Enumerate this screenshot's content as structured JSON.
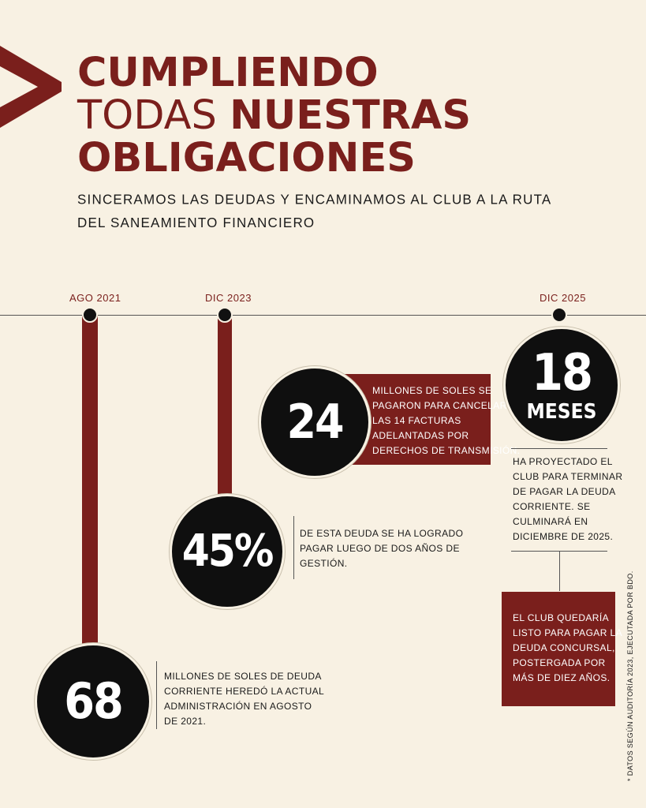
{
  "colors": {
    "accent": "#7a1f1c",
    "background": "#f8f1e3",
    "circle": "#0f0f0f"
  },
  "title": {
    "line1": "CUMPLIENDO",
    "line2_light": "TODAS ",
    "line2_bold": "NUESTRAS",
    "line3": "OBLIGACIONES"
  },
  "subtitle": {
    "line1": "SINCERAMOS LAS DEUDAS Y ENCAMINAMOS AL CLUB A LA RUTA",
    "line2": "DEL SANEAMIENTO FINANCIERO"
  },
  "timeline": {
    "dates": [
      "AGO 2021",
      "DIC 2023",
      "DIC 2025"
    ]
  },
  "stats": {
    "s68": {
      "value": "68",
      "lines": [
        "MILLONES DE SOLES DE DEUDA",
        "CORRIENTE HEREDÓ LA ACTUAL",
        "ADMINISTRACIÓN EN AGOSTO",
        "DE 2021."
      ]
    },
    "s45": {
      "value": "45%",
      "lines": [
        "DE ESTA DEUDA SE HA LOGRADO",
        "PAGAR LUEGO DE DOS AÑOS DE",
        "GESTIÓN."
      ]
    },
    "s24": {
      "value": "24",
      "lines": [
        "MILLONES DE SOLES SE",
        "PAGARON PARA CANCELAR",
        "LAS 14 FACTURAS",
        "ADELANTADAS POR",
        "DERECHOS DE TRANSMISIÓN."
      ]
    },
    "s18": {
      "value": "18",
      "unit": "MESES",
      "lines": [
        "HA PROYECTADO EL",
        "CLUB PARA TERMINAR",
        "DE PAGAR LA DEUDA",
        "CORRIENTE. SE",
        "CULMINARÁ EN",
        "DICIEMBRE DE 2025."
      ]
    }
  },
  "concursal": {
    "lines": [
      "EL CLUB QUEDARÍA",
      "LISTO PARA PAGAR LA",
      "DEUDA CONCURSAL,",
      "POSTERGADA POR",
      "MÁS DE DIEZ AÑOS."
    ]
  },
  "footnote": "* DATOS SEGÚN AUDITORÍA 2023, EJECUTADA POR BDO."
}
